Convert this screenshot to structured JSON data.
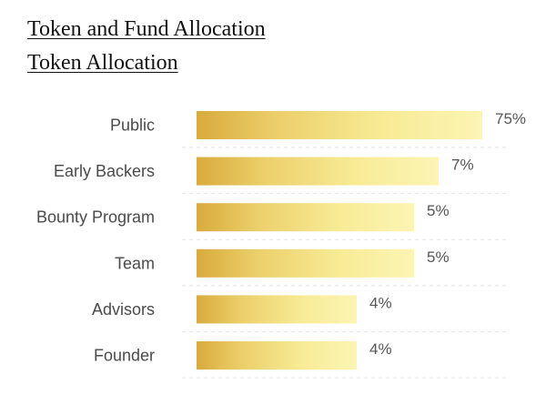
{
  "header": {
    "title": "Token and Fund Allocation",
    "subtitle": "Token Allocation"
  },
  "chart_data": {
    "type": "bar",
    "orientation": "horizontal",
    "title": "Token Allocation",
    "categories": [
      "Public",
      "Early Backers",
      "Bounty Program",
      "Team",
      "Advisors",
      "Founder"
    ],
    "values": [
      75,
      7,
      5,
      5,
      4,
      4
    ],
    "value_labels": [
      "75%",
      "7%",
      "5%",
      "5%",
      "4%",
      "4%"
    ],
    "unit": "%",
    "colors": {
      "bar_dark": "#d6a93b",
      "bar_light": "#fbf1a8"
    },
    "grid": false,
    "legend": "none"
  }
}
